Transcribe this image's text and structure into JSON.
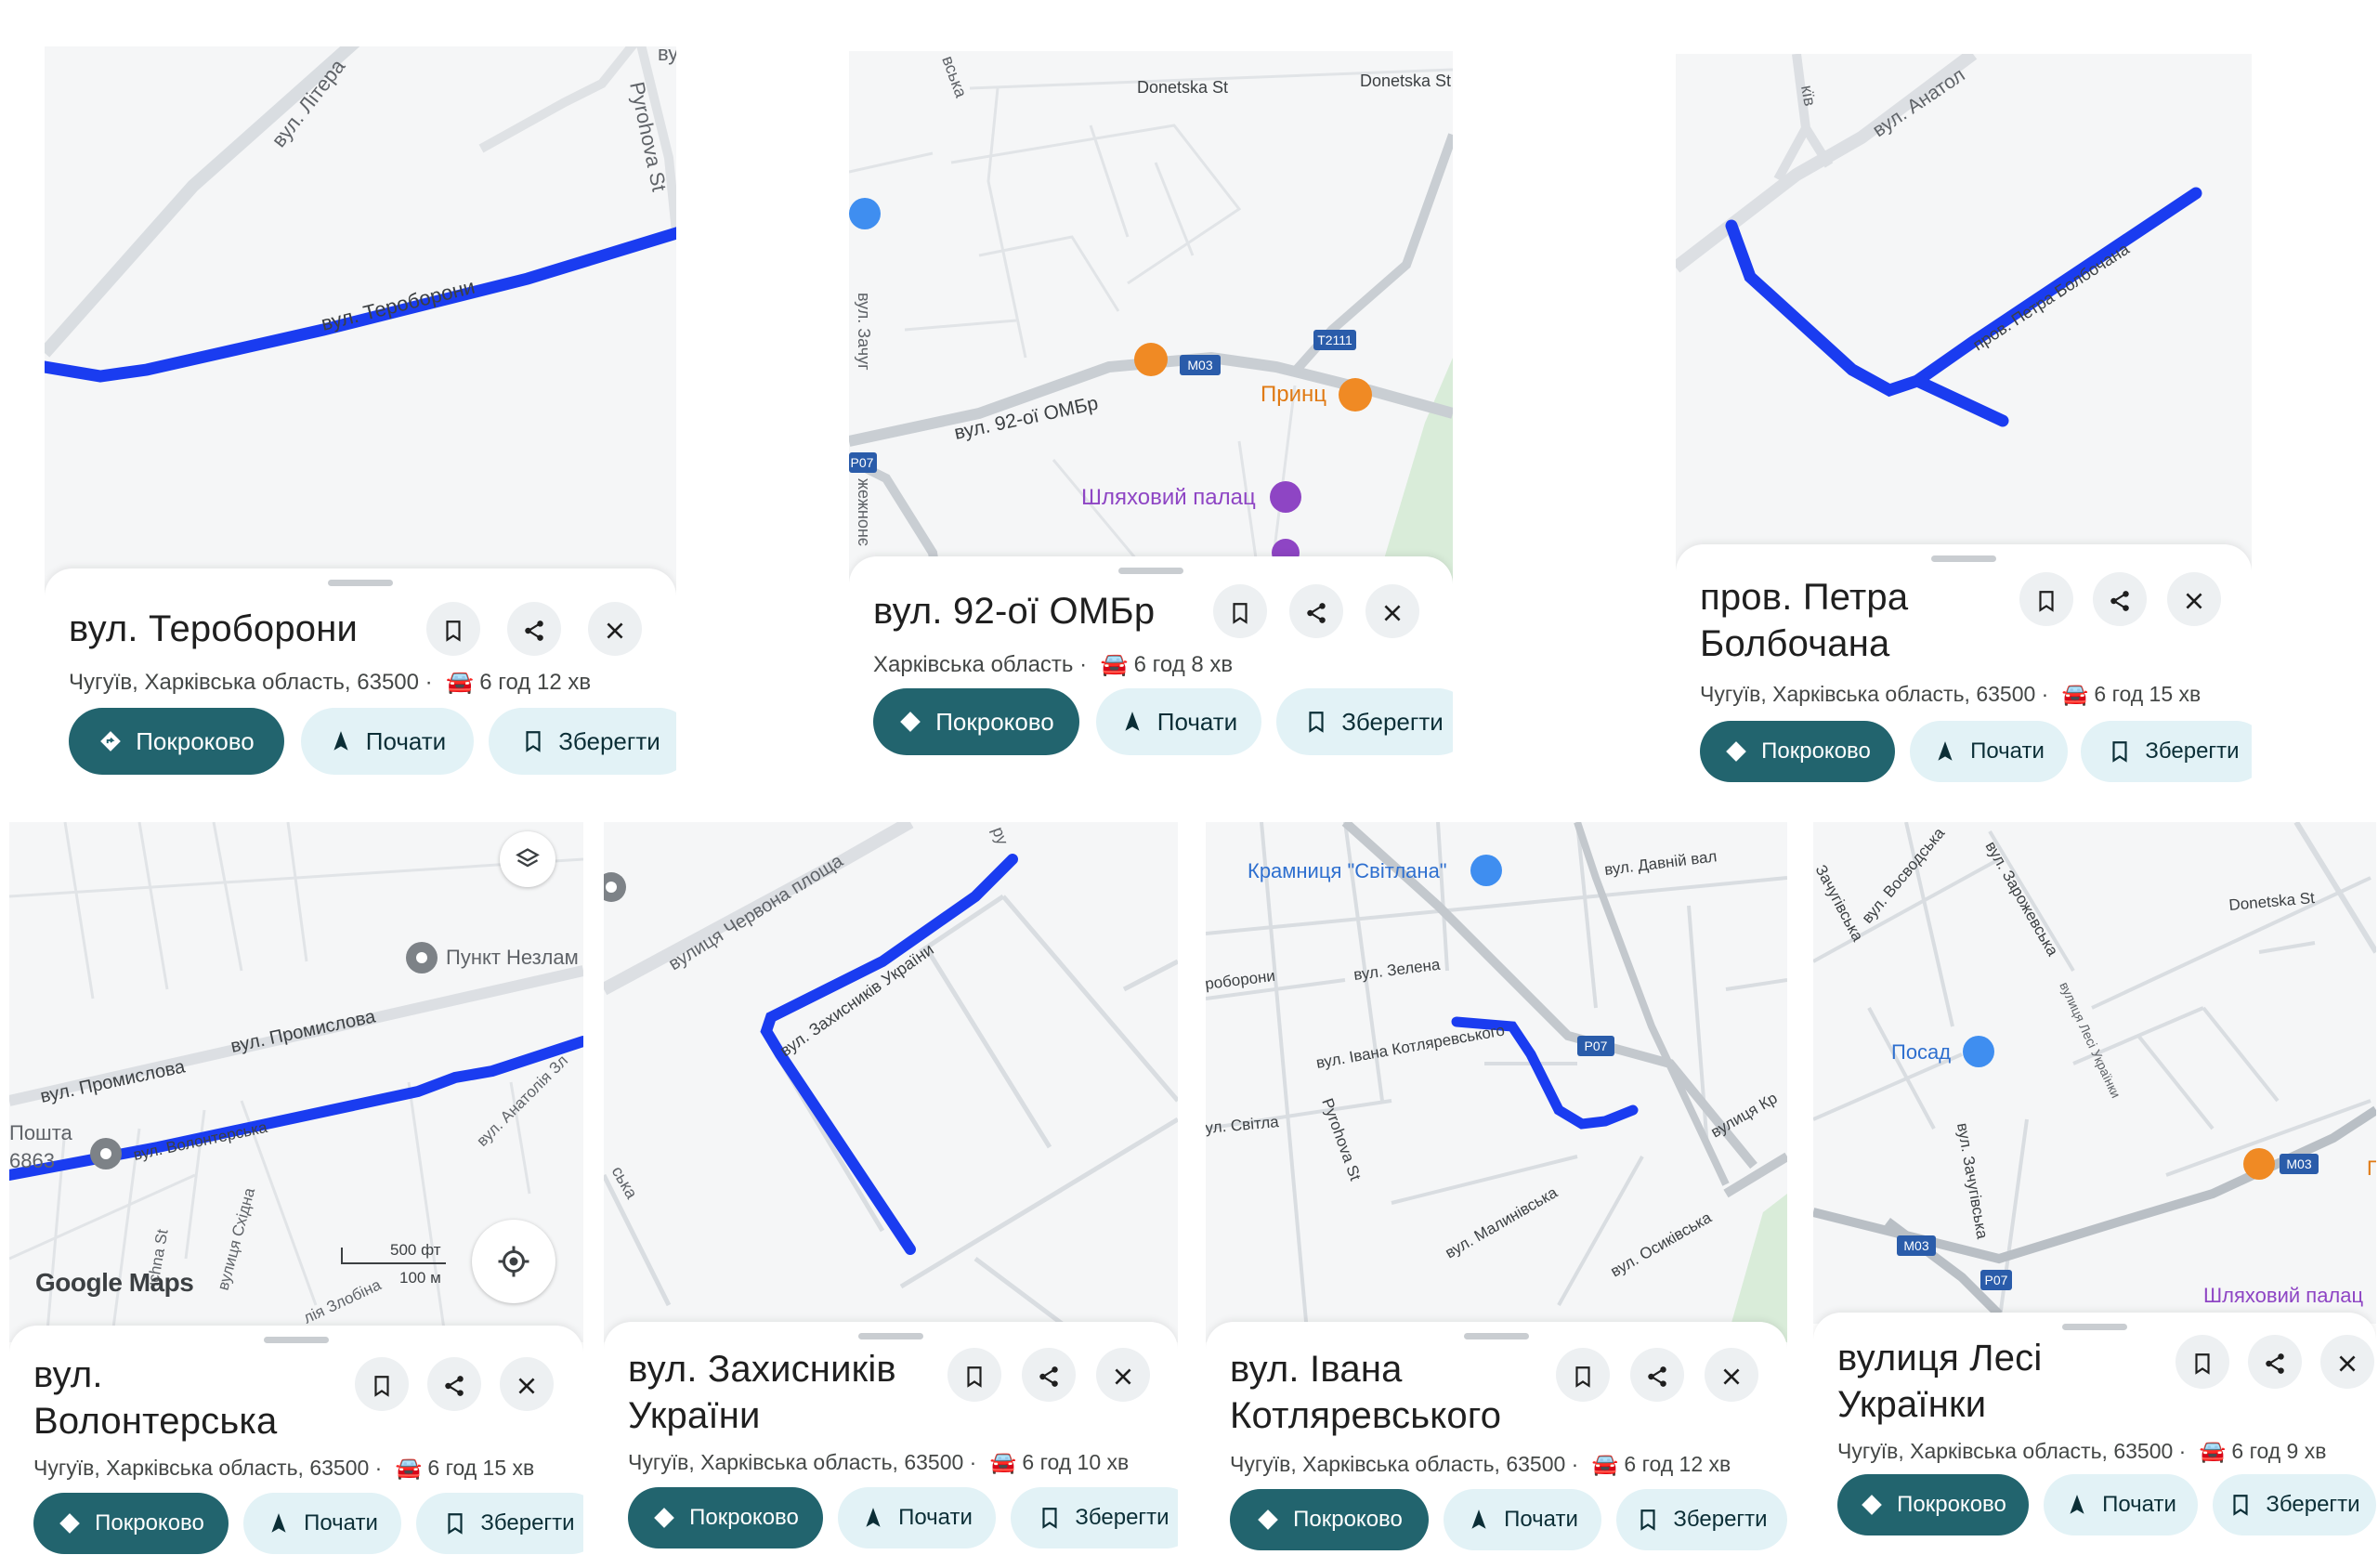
{
  "colors": {
    "route": "#1a3cf0",
    "primary_button": "#22646e",
    "secondary_button": "#e2f2f6",
    "poi_orange": "#f08a24",
    "poi_purple": "#8e45c4",
    "poi_blue": "#3f8ef0",
    "park": "#dcefdc"
  },
  "common": {
    "directions_label": "Покроково",
    "start_label": "Почати",
    "save_label": "Зберегти",
    "car_icon": "car-icon"
  },
  "cards": [
    {
      "title": "вул. Тероборони",
      "subtitle_address": "Чугуїв, Харківська область, 63500",
      "subtitle_time": "6 год 12 хв",
      "map_labels": {
        "street1": "вул. Тероборони",
        "street2": "вул. Літера",
        "street3": "Pyrohova St",
        "street4": "ву"
      }
    },
    {
      "title": "вул. 92-ої ОМБр",
      "subtitle_address": "Харківська область",
      "subtitle_time": "6 год 8 хв",
      "map_labels": {
        "street1": "Donetska St",
        "street2": "Donetska St",
        "street3": "вул. 92-ої ОМБр",
        "street4": "вул. Зачуг",
        "road1": "M03",
        "road2": "T2111",
        "road3": "P07",
        "poi1": "Принц",
        "poi2": "Шляховий палац",
        "street5": "вська",
        "street6": "жежнонє"
      }
    },
    {
      "title": "пров. Петра Болбочана",
      "subtitle_address": "Чугуїв, Харківська область, 63500",
      "subtitle_time": "6 год 15 хв",
      "map_labels": {
        "street1": "вул. Анатол",
        "street2": "пров. Петра Болбочана",
        "street3": "кїв"
      }
    },
    {
      "title": "вул. Волонтерська",
      "subtitle_address": "Чугуїв, Харківська область, 63500",
      "subtitle_time": "6 год 15 хв",
      "map_labels": {
        "street1": "вул. Промислова",
        "street2": "вул. Промислова",
        "street3": "вул. Волонтерська",
        "street4": "вул. Анатолія Зл",
        "street5": "вулиця Східна",
        "street6": "ichna St",
        "street7": "лія Злобіна",
        "poi1": "Пункт Незлам",
        "poi2": "Пошта",
        "poi2b": "6863",
        "logo": "Google Maps",
        "scale1": "500 фт",
        "scale2": "100 м"
      }
    },
    {
      "title": "вул. Захисників України",
      "subtitle_address": "Чугуїв, Харківська область, 63500",
      "subtitle_time": "6 год 10 хв",
      "map_labels": {
        "street1": "вулиця Червона площа",
        "street2": "вул. Захисників України",
        "street3": "ська",
        "street4": "ру"
      }
    },
    {
      "title": "вул. Івана Котляревського",
      "subtitle_address": "Чугуїв, Харківська область, 63500",
      "subtitle_time": "6 год 12 хв",
      "map_labels": {
        "poi1": "Крамниця \"Світлана\"",
        "street1": "вул. Давній вал",
        "street2": "вул. Зелена",
        "street3": "вул. Івана Котляревського",
        "street4": "роборони",
        "street5": "ул. Світла",
        "street6": "Pyrohova St",
        "street7": "вул. Малинівська",
        "street8": "вул. Осиківська",
        "street9": "вулиця Кр",
        "road1": "P07"
      }
    },
    {
      "title": "вулиця Лесі Українки",
      "subtitle_address": "Чугуїв, Харківська область, 63500",
      "subtitle_time": "6 год 9 хв",
      "map_labels": {
        "street1": "вул. Восводська",
        "street2": "вул. Зарожевська",
        "street3": "Зачугівська",
        "street4": "Donetska St",
        "street5": "вулиця Лесі Українки",
        "street6": "вул. Зачугівська",
        "poi1": "Посад",
        "poi2": "Шляховий палац",
        "road1": "M03",
        "road2": "M03",
        "road3": "P07",
        "poi3": "П"
      }
    }
  ]
}
